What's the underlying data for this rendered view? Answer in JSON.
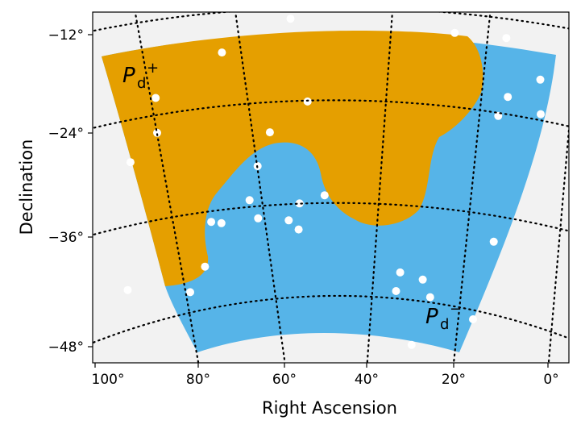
{
  "chart_data": {
    "type": "sky-map",
    "title": "",
    "xlabel": "Right Ascension",
    "ylabel": "Declination",
    "x_ticks": [
      "100°",
      "80°",
      "60°",
      "40°",
      "20°",
      "0°"
    ],
    "y_ticks": [
      "−12°",
      "−24°",
      "−36°",
      "−48°"
    ],
    "x_tick_values": [
      100,
      80,
      60,
      40,
      20,
      0
    ],
    "y_tick_values": [
      -12,
      -24,
      -36,
      -48
    ],
    "xlim": [
      100,
      0
    ],
    "ylim": [
      -50,
      -8
    ],
    "projection": "conic (curved parallels, converging meridians)",
    "regions": [
      {
        "name": "Pd+",
        "label_main": "P",
        "label_sub": "d",
        "label_sup": "+",
        "color": "#e59f00",
        "description": "northern / upper region"
      },
      {
        "name": "Pd−",
        "label_main": "P",
        "label_sub": "d",
        "label_sup": "−",
        "color": "#56b4e8",
        "description": "southern / lower region"
      }
    ],
    "masked_color": "#ffffff",
    "background_color": "#f2f2f2",
    "masked_sources": [
      {
        "ra": 60,
        "dec": -10
      },
      {
        "ra": 76,
        "dec": -15
      },
      {
        "ra": 89,
        "dec": -22
      },
      {
        "ra": 87,
        "dec": -26
      },
      {
        "ra": 91,
        "dec": -30
      },
      {
        "ra": 55,
        "dec": -20
      },
      {
        "ra": 63,
        "dec": -24
      },
      {
        "ra": 65,
        "dec": -28
      },
      {
        "ra": 66,
        "dec": -32
      },
      {
        "ra": 51,
        "dec": -31
      },
      {
        "ra": 56,
        "dec": -32
      },
      {
        "ra": 58,
        "dec": -34
      },
      {
        "ra": 64,
        "dec": -34
      },
      {
        "ra": 71,
        "dec": -35
      },
      {
        "ra": 73,
        "dec": -35
      },
      {
        "ra": 56,
        "dec": -35
      },
      {
        "ra": 73,
        "dec": -40
      },
      {
        "ra": 75,
        "dec": -43
      },
      {
        "ra": 86,
        "dec": -44
      },
      {
        "ra": 37,
        "dec": -40
      },
      {
        "ra": 33,
        "dec": -41
      },
      {
        "ra": 38,
        "dec": -42
      },
      {
        "ra": 32,
        "dec": -43
      },
      {
        "ra": 25,
        "dec": -46
      },
      {
        "ra": 36,
        "dec": -48
      },
      {
        "ra": 19,
        "dec": -38
      },
      {
        "ra": 13,
        "dec": -24
      },
      {
        "ra": 10,
        "dec": -22
      },
      {
        "ra": 4,
        "dec": -25
      },
      {
        "ra": 2,
        "dec": -21
      },
      {
        "ra": 7,
        "dec": -15
      },
      {
        "ra": 19,
        "dec": -13
      }
    ]
  }
}
